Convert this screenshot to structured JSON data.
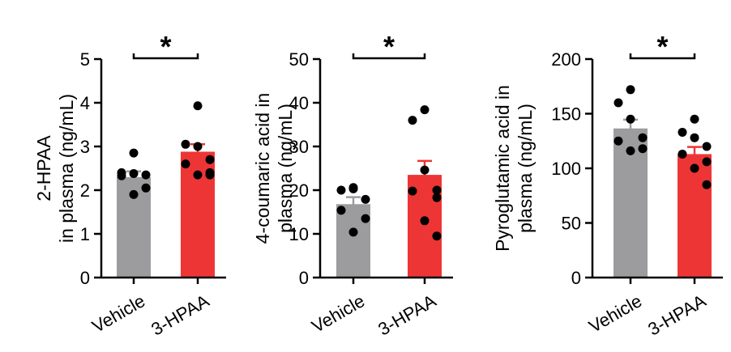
{
  "colors": {
    "vehicle": "#9c9c9f",
    "treatment": "#ee3535",
    "axis": "#000000",
    "dot": "#000000"
  },
  "chart_data": [
    {
      "type": "bar",
      "ylabel_lines": [
        "2-HPAA",
        "in plasma (ng/mL)"
      ],
      "categories": [
        "Vehicle",
        "3-HPAA"
      ],
      "values": [
        2.3,
        2.88
      ],
      "sem": [
        0.13,
        0.17
      ],
      "points": [
        [
          2.85,
          2.4,
          2.38,
          2.35,
          2.33,
          2.05,
          1.9
        ],
        [
          3.93,
          3.05,
          3.0,
          2.7,
          2.6,
          2.4,
          2.35,
          2.35
        ]
      ],
      "ylim": [
        0,
        5
      ],
      "yticks": [
        0,
        1,
        2,
        3,
        4,
        5
      ],
      "tick_labels": [
        "0",
        "1",
        "2",
        "3",
        "4",
        "5"
      ],
      "significance": "*",
      "grid": false
    },
    {
      "type": "bar",
      "ylabel_lines": [
        "4-coumaric acid in",
        "plasma (ng/mL)"
      ],
      "categories": [
        "Vehicle",
        "3-HPAA"
      ],
      "values": [
        16.8,
        23.5
      ],
      "sem": [
        1.6,
        3.2
      ],
      "points": [
        [
          20.6,
          20.0,
          20.3,
          17.9,
          15.4,
          13.5,
          10.4
        ],
        [
          38.4,
          36.0,
          24.6,
          20.0,
          19.8,
          18.3,
          13.0,
          9.5
        ]
      ],
      "ylim": [
        0,
        50
      ],
      "yticks": [
        0,
        10,
        20,
        30,
        40,
        50
      ],
      "tick_labels": [
        "0",
        "10",
        "20",
        "30",
        "40",
        "50"
      ],
      "significance": "*",
      "grid": false
    },
    {
      "type": "bar",
      "ylabel_lines": [
        "Pyroglutamic acid in",
        "plasma (ng/mL)"
      ],
      "categories": [
        "Vehicle",
        "3-HPAA"
      ],
      "values": [
        136.5,
        113
      ],
      "sem": [
        8,
        6.5
      ],
      "points": [
        [
          172,
          160,
          145,
          128,
          125,
          118,
          116
        ],
        [
          145,
          133,
          128,
          120,
          113,
          106,
          100,
          85
        ]
      ],
      "ylim": [
        0,
        200
      ],
      "yticks": [
        0,
        50,
        100,
        150,
        200
      ],
      "tick_labels": [
        "0",
        "50",
        "100",
        "150",
        "200"
      ],
      "significance": "*",
      "grid": false
    }
  ]
}
